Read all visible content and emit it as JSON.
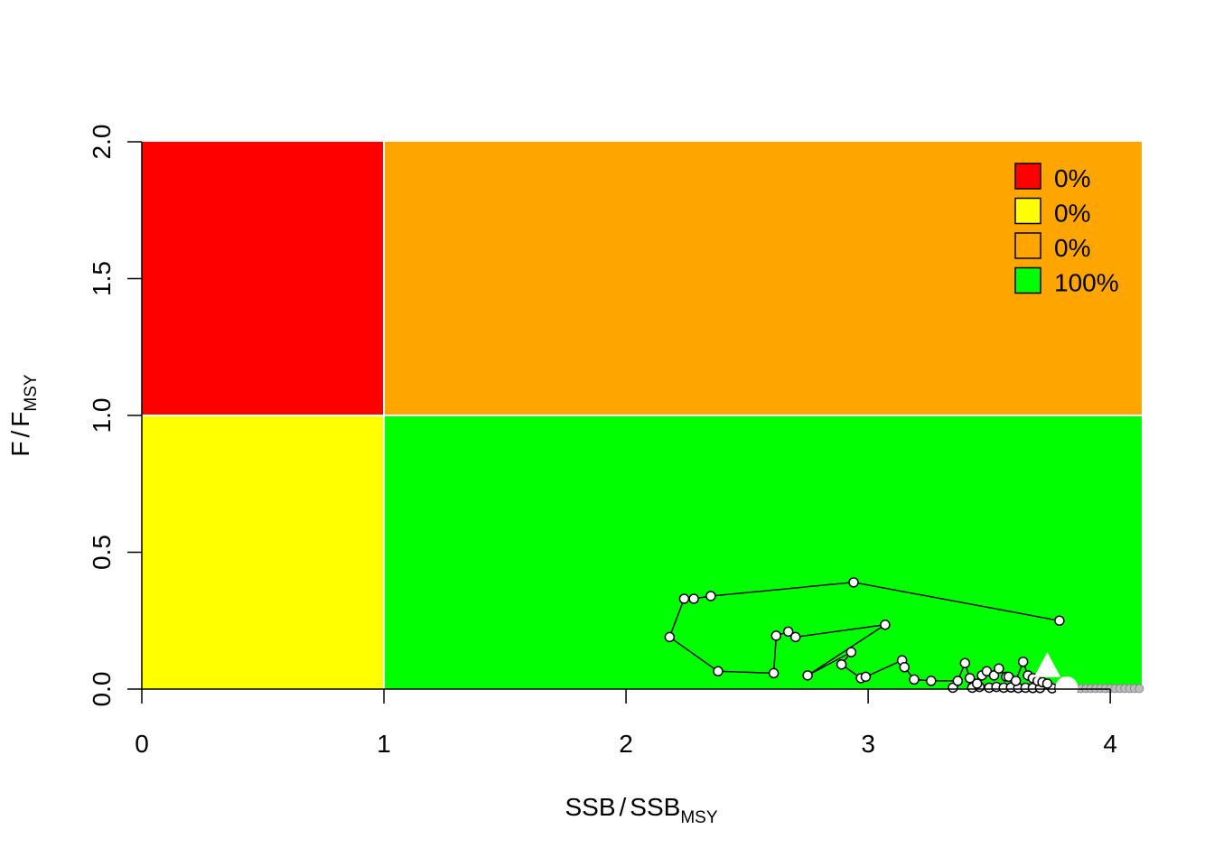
{
  "chart_data": {
    "type": "scatter",
    "title": "",
    "xlabel": {
      "main": "SSB",
      "sep": "/",
      "base": "SSB",
      "sub": "MSY"
    },
    "ylabel": {
      "main": "F",
      "sep": "/",
      "base": "F",
      "sub": "MSY"
    },
    "xlim": [
      0,
      4.13
    ],
    "ylim": [
      0,
      2.0
    ],
    "x_ticks": [
      "0",
      "1",
      "2",
      "3",
      "4"
    ],
    "x_tick_values": [
      0,
      1,
      2,
      3,
      4
    ],
    "y_ticks": [
      "0.0",
      "0.5",
      "1.0",
      "1.5",
      "2.0"
    ],
    "y_tick_values": [
      0,
      0.5,
      1.0,
      1.5,
      2.0
    ],
    "ref_x": 1,
    "ref_y": 1,
    "quadrants": [
      {
        "name": "overfished-overfishing",
        "color": "#ff0000",
        "x": [
          0,
          1
        ],
        "y": [
          1,
          2
        ]
      },
      {
        "name": "healthy-overfishing",
        "color": "#ffa500",
        "x": [
          1,
          4.13
        ],
        "y": [
          1,
          2
        ]
      },
      {
        "name": "overfished-healthy",
        "color": "#ffff00",
        "x": [
          0,
          1
        ],
        "y": [
          0,
          1
        ]
      },
      {
        "name": "healthy",
        "color": "#00ff00",
        "x": [
          1,
          4.13
        ],
        "y": [
          0,
          1
        ]
      }
    ],
    "legend": {
      "placement": "top-right",
      "items": [
        {
          "label": "0%",
          "color": "#ff0000"
        },
        {
          "label": "0%",
          "color": "#ffff00"
        },
        {
          "label": "0%",
          "color": "#ffa500"
        },
        {
          "label": "100%",
          "color": "#00ff00"
        }
      ]
    },
    "trajectory": {
      "x": [
        3.79,
        2.94,
        2.35,
        2.28,
        2.24,
        2.18,
        2.38,
        2.61,
        2.62,
        2.67,
        2.7,
        3.07,
        2.75,
        2.93,
        2.89,
        2.97,
        2.99,
        3.14,
        3.15,
        3.19,
        3.26,
        3.37,
        3.4,
        3.42,
        3.45,
        3.47,
        3.49,
        3.52,
        3.54,
        3.57,
        3.58,
        3.61,
        3.64,
        3.66,
        3.68,
        3.7,
        3.72,
        3.74
      ],
      "y": [
        0.25,
        0.39,
        0.34,
        0.33,
        0.33,
        0.19,
        0.065,
        0.058,
        0.195,
        0.21,
        0.19,
        0.235,
        0.05,
        0.135,
        0.09,
        0.04,
        0.045,
        0.105,
        0.08,
        0.035,
        0.03,
        0.03,
        0.095,
        0.04,
        0.02,
        0.05,
        0.065,
        0.05,
        0.075,
        0.045,
        0.045,
        0.03,
        0.1,
        0.05,
        0.04,
        0.03,
        0.025,
        0.02
      ]
    },
    "hidden_points": {
      "x": [
        3.35,
        3.43,
        3.46,
        3.5,
        3.53,
        3.56,
        3.59,
        3.62,
        3.65,
        3.68,
        3.71,
        3.76,
        3.79
      ],
      "y": [
        0.005,
        0.005,
        0.008,
        0.005,
        0.008,
        0.005,
        0.006,
        0.004,
        0.005,
        0.004,
        0.004,
        0.003,
        0.003
      ]
    },
    "projection": {
      "x": [
        3.86,
        3.88,
        3.9,
        3.92,
        3.94,
        3.96,
        3.98,
        4.0,
        4.02,
        4.04,
        4.06,
        4.08,
        4.1,
        4.12
      ],
      "y": [
        0.002,
        0.002,
        0.002,
        0.002,
        0.002,
        0.002,
        0.002,
        0.002,
        0.002,
        0.002,
        0.002,
        0.002,
        0.002,
        0.002
      ]
    },
    "start_marker": {
      "shape": "triangle",
      "x": 3.74,
      "y": 0.085
    },
    "end_marker": {
      "shape": "circle",
      "x": 3.82,
      "y": 0.005
    }
  }
}
